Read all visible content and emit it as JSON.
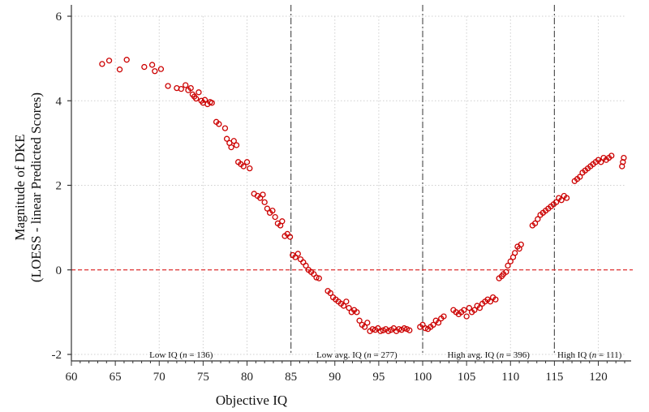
{
  "chart_data": {
    "type": "scatter",
    "title": "",
    "xlabel": "Objective IQ",
    "ylabel_line1": "Magnitude of DKE",
    "ylabel_line2": "(LOESS - linear Predicted Scores)",
    "xlim": [
      60,
      123
    ],
    "ylim": [
      -2,
      6
    ],
    "xticks": [
      60,
      65,
      70,
      75,
      80,
      85,
      90,
      95,
      100,
      105,
      110,
      115,
      120
    ],
    "yticks": [
      -2,
      0,
      2,
      4,
      6
    ],
    "grid": true,
    "reference_line_y": 0,
    "vertical_lines_x": [
      85,
      100,
      115
    ],
    "marker_color": "#cc0000",
    "reference_color": "#e03030",
    "groups": [
      {
        "label": "Low IQ (",
        "n_italic": "n",
        "n_value": " = 136)",
        "x_center": 72.5
      },
      {
        "label": "Low avg. IQ (",
        "n_italic": "n",
        "n_value": " = 277)",
        "x_center": 92.5
      },
      {
        "label": "High avg. IQ (",
        "n_italic": "n",
        "n_value": " = 396)",
        "x_center": 107.5
      },
      {
        "label": "High IQ (",
        "n_italic": "n",
        "n_value": " = 111)",
        "x_center": 119
      }
    ],
    "points": [
      [
        63.5,
        4.87
      ],
      [
        64.3,
        4.95
      ],
      [
        65.5,
        4.74
      ],
      [
        66.3,
        4.97
      ],
      [
        68.3,
        4.8
      ],
      [
        69.2,
        4.85
      ],
      [
        69.5,
        4.7
      ],
      [
        70.2,
        4.75
      ],
      [
        71.0,
        4.35
      ],
      [
        72.0,
        4.3
      ],
      [
        72.5,
        4.28
      ],
      [
        73.0,
        4.37
      ],
      [
        73.3,
        4.25
      ],
      [
        73.6,
        4.3
      ],
      [
        73.8,
        4.15
      ],
      [
        74.0,
        4.1
      ],
      [
        74.2,
        4.05
      ],
      [
        74.5,
        4.2
      ],
      [
        74.8,
        4.0
      ],
      [
        75.0,
        3.95
      ],
      [
        75.2,
        4.02
      ],
      [
        75.5,
        3.92
      ],
      [
        75.8,
        3.97
      ],
      [
        76.0,
        3.95
      ],
      [
        76.5,
        3.5
      ],
      [
        76.8,
        3.45
      ],
      [
        77.5,
        3.35
      ],
      [
        77.7,
        3.1
      ],
      [
        78.0,
        3.0
      ],
      [
        78.2,
        2.9
      ],
      [
        78.5,
        3.05
      ],
      [
        78.8,
        2.95
      ],
      [
        79.0,
        2.55
      ],
      [
        79.3,
        2.5
      ],
      [
        79.6,
        2.45
      ],
      [
        80.0,
        2.55
      ],
      [
        80.3,
        2.4
      ],
      [
        80.8,
        1.8
      ],
      [
        81.2,
        1.75
      ],
      [
        81.5,
        1.7
      ],
      [
        81.8,
        1.78
      ],
      [
        82.0,
        1.6
      ],
      [
        82.3,
        1.45
      ],
      [
        82.6,
        1.35
      ],
      [
        82.9,
        1.4
      ],
      [
        83.2,
        1.25
      ],
      [
        83.5,
        1.1
      ],
      [
        83.8,
        1.05
      ],
      [
        84.0,
        1.15
      ],
      [
        84.3,
        0.8
      ],
      [
        84.6,
        0.85
      ],
      [
        84.9,
        0.78
      ],
      [
        85.2,
        0.35
      ],
      [
        85.5,
        0.3
      ],
      [
        85.8,
        0.38
      ],
      [
        86.1,
        0.25
      ],
      [
        86.4,
        0.18
      ],
      [
        86.7,
        0.1
      ],
      [
        87.0,
        0.0
      ],
      [
        87.3,
        -0.05
      ],
      [
        87.6,
        -0.1
      ],
      [
        87.9,
        -0.18
      ],
      [
        88.2,
        -0.2
      ],
      [
        89.2,
        -0.5
      ],
      [
        89.5,
        -0.55
      ],
      [
        89.8,
        -0.65
      ],
      [
        90.1,
        -0.7
      ],
      [
        90.4,
        -0.75
      ],
      [
        90.7,
        -0.8
      ],
      [
        91.0,
        -0.85
      ],
      [
        91.3,
        -0.75
      ],
      [
        91.6,
        -0.9
      ],
      [
        91.9,
        -1.0
      ],
      [
        92.2,
        -0.95
      ],
      [
        92.5,
        -1.0
      ],
      [
        92.8,
        -1.2
      ],
      [
        93.1,
        -1.3
      ],
      [
        93.4,
        -1.35
      ],
      [
        93.7,
        -1.25
      ],
      [
        94.0,
        -1.45
      ],
      [
        94.3,
        -1.4
      ],
      [
        94.6,
        -1.42
      ],
      [
        94.9,
        -1.38
      ],
      [
        95.2,
        -1.45
      ],
      [
        95.5,
        -1.43
      ],
      [
        95.8,
        -1.4
      ],
      [
        96.1,
        -1.45
      ],
      [
        96.4,
        -1.42
      ],
      [
        96.7,
        -1.38
      ],
      [
        97.0,
        -1.45
      ],
      [
        97.3,
        -1.4
      ],
      [
        97.6,
        -1.42
      ],
      [
        97.9,
        -1.38
      ],
      [
        98.2,
        -1.4
      ],
      [
        98.5,
        -1.43
      ],
      [
        99.7,
        -1.35
      ],
      [
        100.0,
        -1.3
      ],
      [
        100.3,
        -1.38
      ],
      [
        100.6,
        -1.4
      ],
      [
        100.9,
        -1.35
      ],
      [
        101.2,
        -1.3
      ],
      [
        101.5,
        -1.2
      ],
      [
        101.8,
        -1.25
      ],
      [
        102.1,
        -1.15
      ],
      [
        102.4,
        -1.1
      ],
      [
        103.5,
        -0.95
      ],
      [
        103.8,
        -1.0
      ],
      [
        104.1,
        -1.05
      ],
      [
        104.4,
        -1.0
      ],
      [
        104.7,
        -0.95
      ],
      [
        105.0,
        -1.1
      ],
      [
        105.3,
        -0.9
      ],
      [
        105.6,
        -1.0
      ],
      [
        105.9,
        -0.95
      ],
      [
        106.2,
        -0.85
      ],
      [
        106.5,
        -0.9
      ],
      [
        106.8,
        -0.8
      ],
      [
        107.1,
        -0.75
      ],
      [
        107.4,
        -0.7
      ],
      [
        107.7,
        -0.75
      ],
      [
        108.0,
        -0.65
      ],
      [
        108.3,
        -0.7
      ],
      [
        108.7,
        -0.2
      ],
      [
        109.0,
        -0.15
      ],
      [
        109.2,
        -0.1
      ],
      [
        109.5,
        -0.05
      ],
      [
        109.7,
        0.1
      ],
      [
        110.0,
        0.2
      ],
      [
        110.3,
        0.3
      ],
      [
        110.5,
        0.4
      ],
      [
        110.8,
        0.55
      ],
      [
        111.0,
        0.5
      ],
      [
        111.2,
        0.6
      ],
      [
        112.5,
        1.05
      ],
      [
        112.8,
        1.1
      ],
      [
        113.1,
        1.2
      ],
      [
        113.4,
        1.3
      ],
      [
        113.7,
        1.35
      ],
      [
        114.0,
        1.4
      ],
      [
        114.3,
        1.45
      ],
      [
        114.6,
        1.5
      ],
      [
        114.9,
        1.55
      ],
      [
        115.2,
        1.6
      ],
      [
        115.5,
        1.7
      ],
      [
        115.8,
        1.65
      ],
      [
        116.1,
        1.75
      ],
      [
        116.4,
        1.7
      ],
      [
        117.3,
        2.1
      ],
      [
        117.6,
        2.15
      ],
      [
        117.9,
        2.2
      ],
      [
        118.2,
        2.3
      ],
      [
        118.5,
        2.35
      ],
      [
        118.8,
        2.4
      ],
      [
        119.1,
        2.45
      ],
      [
        119.4,
        2.5
      ],
      [
        119.7,
        2.55
      ],
      [
        120.0,
        2.6
      ],
      [
        120.3,
        2.55
      ],
      [
        120.6,
        2.65
      ],
      [
        120.9,
        2.6
      ],
      [
        121.2,
        2.65
      ],
      [
        121.5,
        2.7
      ],
      [
        122.7,
        2.45
      ],
      [
        122.8,
        2.55
      ],
      [
        122.9,
        2.65
      ]
    ]
  }
}
